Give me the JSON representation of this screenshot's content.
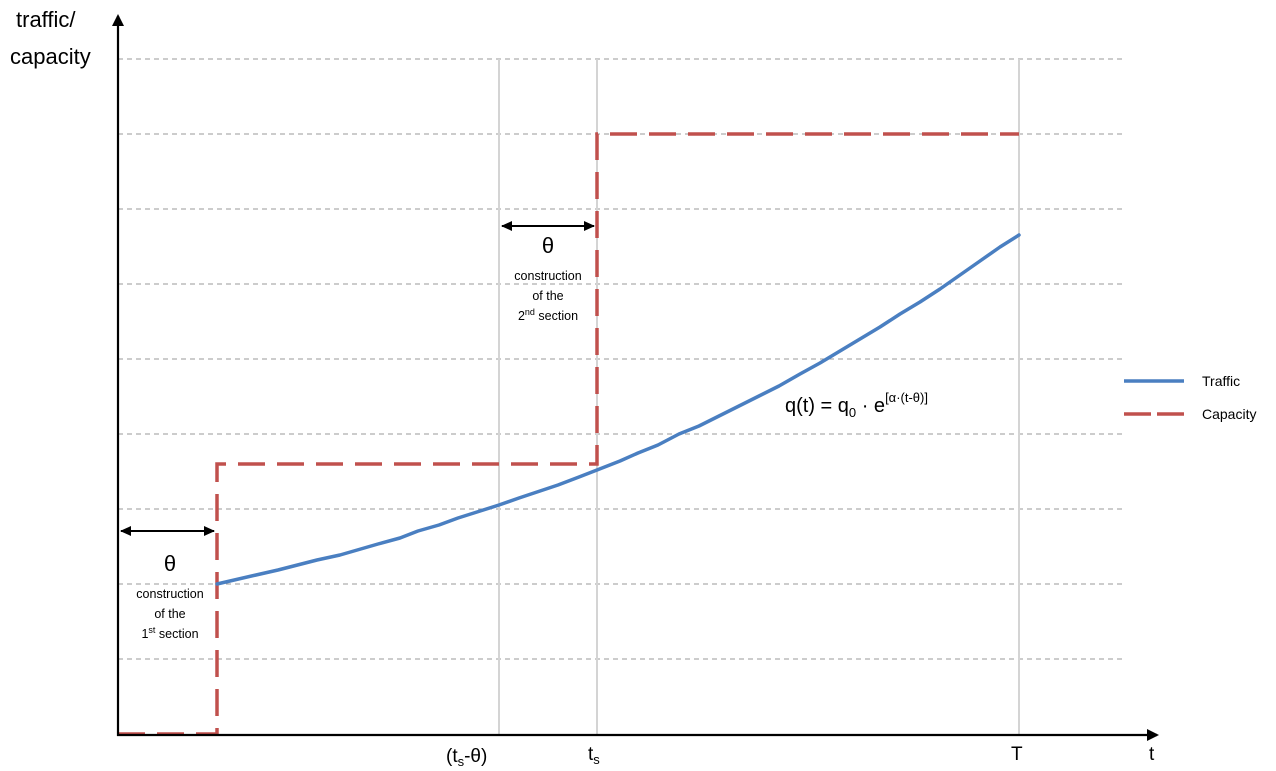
{
  "axes": {
    "y_label_line1": "traffic/",
    "y_label_line2": "capacity",
    "x_label": "t"
  },
  "ticks": {
    "ts_minus_theta_open": "(t",
    "ts_minus_theta_sub": "s",
    "ts_minus_theta_close": "-θ)",
    "ts_base": "t",
    "ts_sub": "s",
    "T": "T"
  },
  "annotations": {
    "first": {
      "symbol": "θ",
      "line1": "construction",
      "line2": "of the",
      "line3_num": "1",
      "line3_sup": "st",
      "line3_rest": " section"
    },
    "second": {
      "symbol": "θ",
      "line1": "construction",
      "line2": "of the",
      "line3_num": "2",
      "line3_sup": "nd",
      "line3_rest": " section"
    }
  },
  "formula": {
    "lhs": "q(t) = q",
    "sub": "0",
    "mid": " · e",
    "sup": "[α·(t-θ)]"
  },
  "legend": {
    "items": [
      {
        "label": "Traffic",
        "color": "#4a7fc1",
        "style": "solid"
      },
      {
        "label": "Capacity",
        "color": "#c0504d",
        "style": "dashed"
      }
    ]
  }
}
